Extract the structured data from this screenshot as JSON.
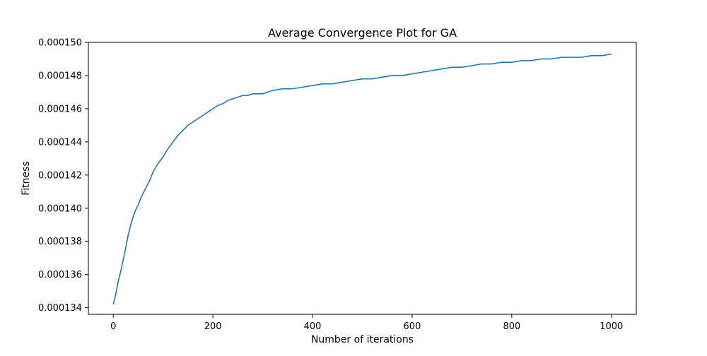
{
  "chart_data": {
    "type": "line",
    "title": "Average Convergence Plot for GA",
    "xlabel": "Number of iterations",
    "ylabel": "Fitness",
    "xlim": [
      -50,
      1050
    ],
    "ylim": [
      0.0001336,
      0.00015
    ],
    "x_ticks": [
      0,
      200,
      400,
      600,
      800,
      1000
    ],
    "x_tick_labels": [
      "0",
      "200",
      "400",
      "600",
      "800",
      "1000"
    ],
    "y_ticks": [
      0.000134,
      0.000136,
      0.000138,
      0.00014,
      0.000142,
      0.000144,
      0.000146,
      0.000148,
      0.00015
    ],
    "y_tick_labels": [
      "0.000134",
      "0.000136",
      "0.000138",
      "0.000140",
      "0.000142",
      "0.000144",
      "0.000146",
      "0.000148",
      "0.000150"
    ],
    "grid": false,
    "color": "#1f77b4",
    "series": [
      {
        "x": [
          0,
          5,
          10,
          15,
          20,
          25,
          30,
          35,
          40,
          45,
          50,
          55,
          60,
          65,
          70,
          75,
          80,
          90,
          100,
          110,
          120,
          130,
          140,
          150,
          160,
          170,
          180,
          190,
          200,
          210,
          220,
          230,
          240,
          250,
          260,
          270,
          280,
          290,
          300,
          310,
          320,
          340,
          360,
          380,
          400,
          420,
          440,
          460,
          480,
          500,
          520,
          540,
          560,
          580,
          600,
          620,
          640,
          660,
          680,
          700,
          720,
          740,
          760,
          780,
          800,
          820,
          840,
          860,
          880,
          900,
          920,
          940,
          960,
          980,
          1000
        ],
        "y": [
          0.0001342,
          0.0001348,
          0.0001356,
          0.0001362,
          0.0001369,
          0.0001376,
          0.0001384,
          0.000139,
          0.0001395,
          0.0001399,
          0.0001402,
          0.0001406,
          0.0001409,
          0.0001412,
          0.0001415,
          0.0001418,
          0.0001422,
          0.0001427,
          0.0001431,
          0.0001436,
          0.000144,
          0.0001444,
          0.0001447,
          0.000145,
          0.0001452,
          0.0001454,
          0.0001456,
          0.0001458,
          0.000146,
          0.0001462,
          0.0001463,
          0.0001465,
          0.0001466,
          0.0001467,
          0.0001468,
          0.0001468,
          0.0001469,
          0.0001469,
          0.0001469,
          0.000147,
          0.0001471,
          0.0001472,
          0.0001472,
          0.0001473,
          0.0001474,
          0.0001475,
          0.0001475,
          0.0001476,
          0.0001477,
          0.0001478,
          0.0001478,
          0.0001479,
          0.000148,
          0.000148,
          0.0001481,
          0.0001482,
          0.0001483,
          0.0001484,
          0.0001485,
          0.0001485,
          0.0001486,
          0.0001487,
          0.0001487,
          0.0001488,
          0.0001488,
          0.0001489,
          0.0001489,
          0.000149,
          0.000149,
          0.0001491,
          0.0001491,
          0.0001491,
          0.0001492,
          0.0001492,
          0.0001493
        ]
      }
    ]
  }
}
